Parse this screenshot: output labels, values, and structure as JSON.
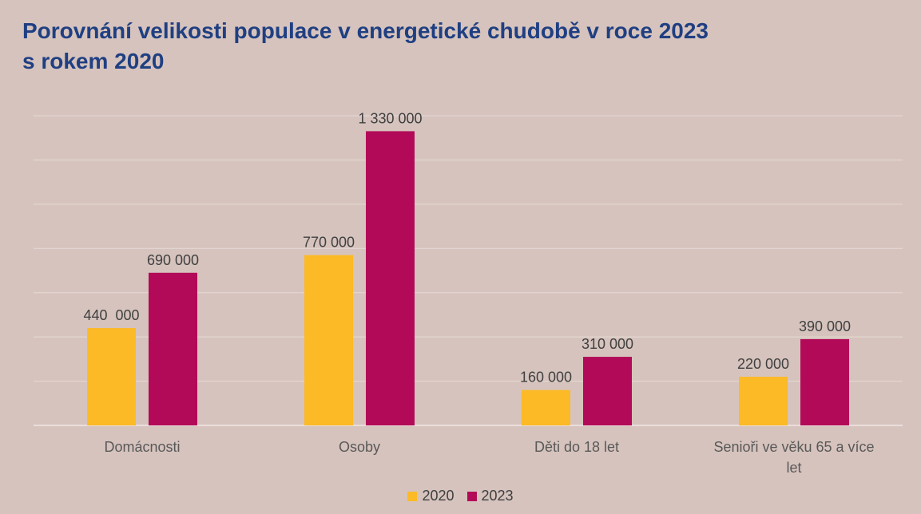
{
  "title_line1": "Porovnání velikosti populace v energetické chudobě v roce 2023",
  "title_line2": "s rokem 2020",
  "chart_data": {
    "type": "bar",
    "categories": [
      "Domácnosti",
      "Osoby",
      "Děti do 18 let",
      "Senioři ve věku 65 a více let"
    ],
    "series": [
      {
        "name": "2020",
        "color": "#fbba26",
        "values": [
          440000,
          770000,
          160000,
          220000
        ],
        "labels": [
          "440  000",
          "770 000",
          "160 000",
          "220 000"
        ]
      },
      {
        "name": "2023",
        "color": "#b20a58",
        "values": [
          690000,
          1330000,
          310000,
          390000
        ],
        "labels": [
          "690 000",
          "1 330 000",
          "310 000",
          "390 000"
        ]
      }
    ],
    "ylim": [
      0,
      1400000
    ],
    "grid": true,
    "legend": "bottom"
  }
}
